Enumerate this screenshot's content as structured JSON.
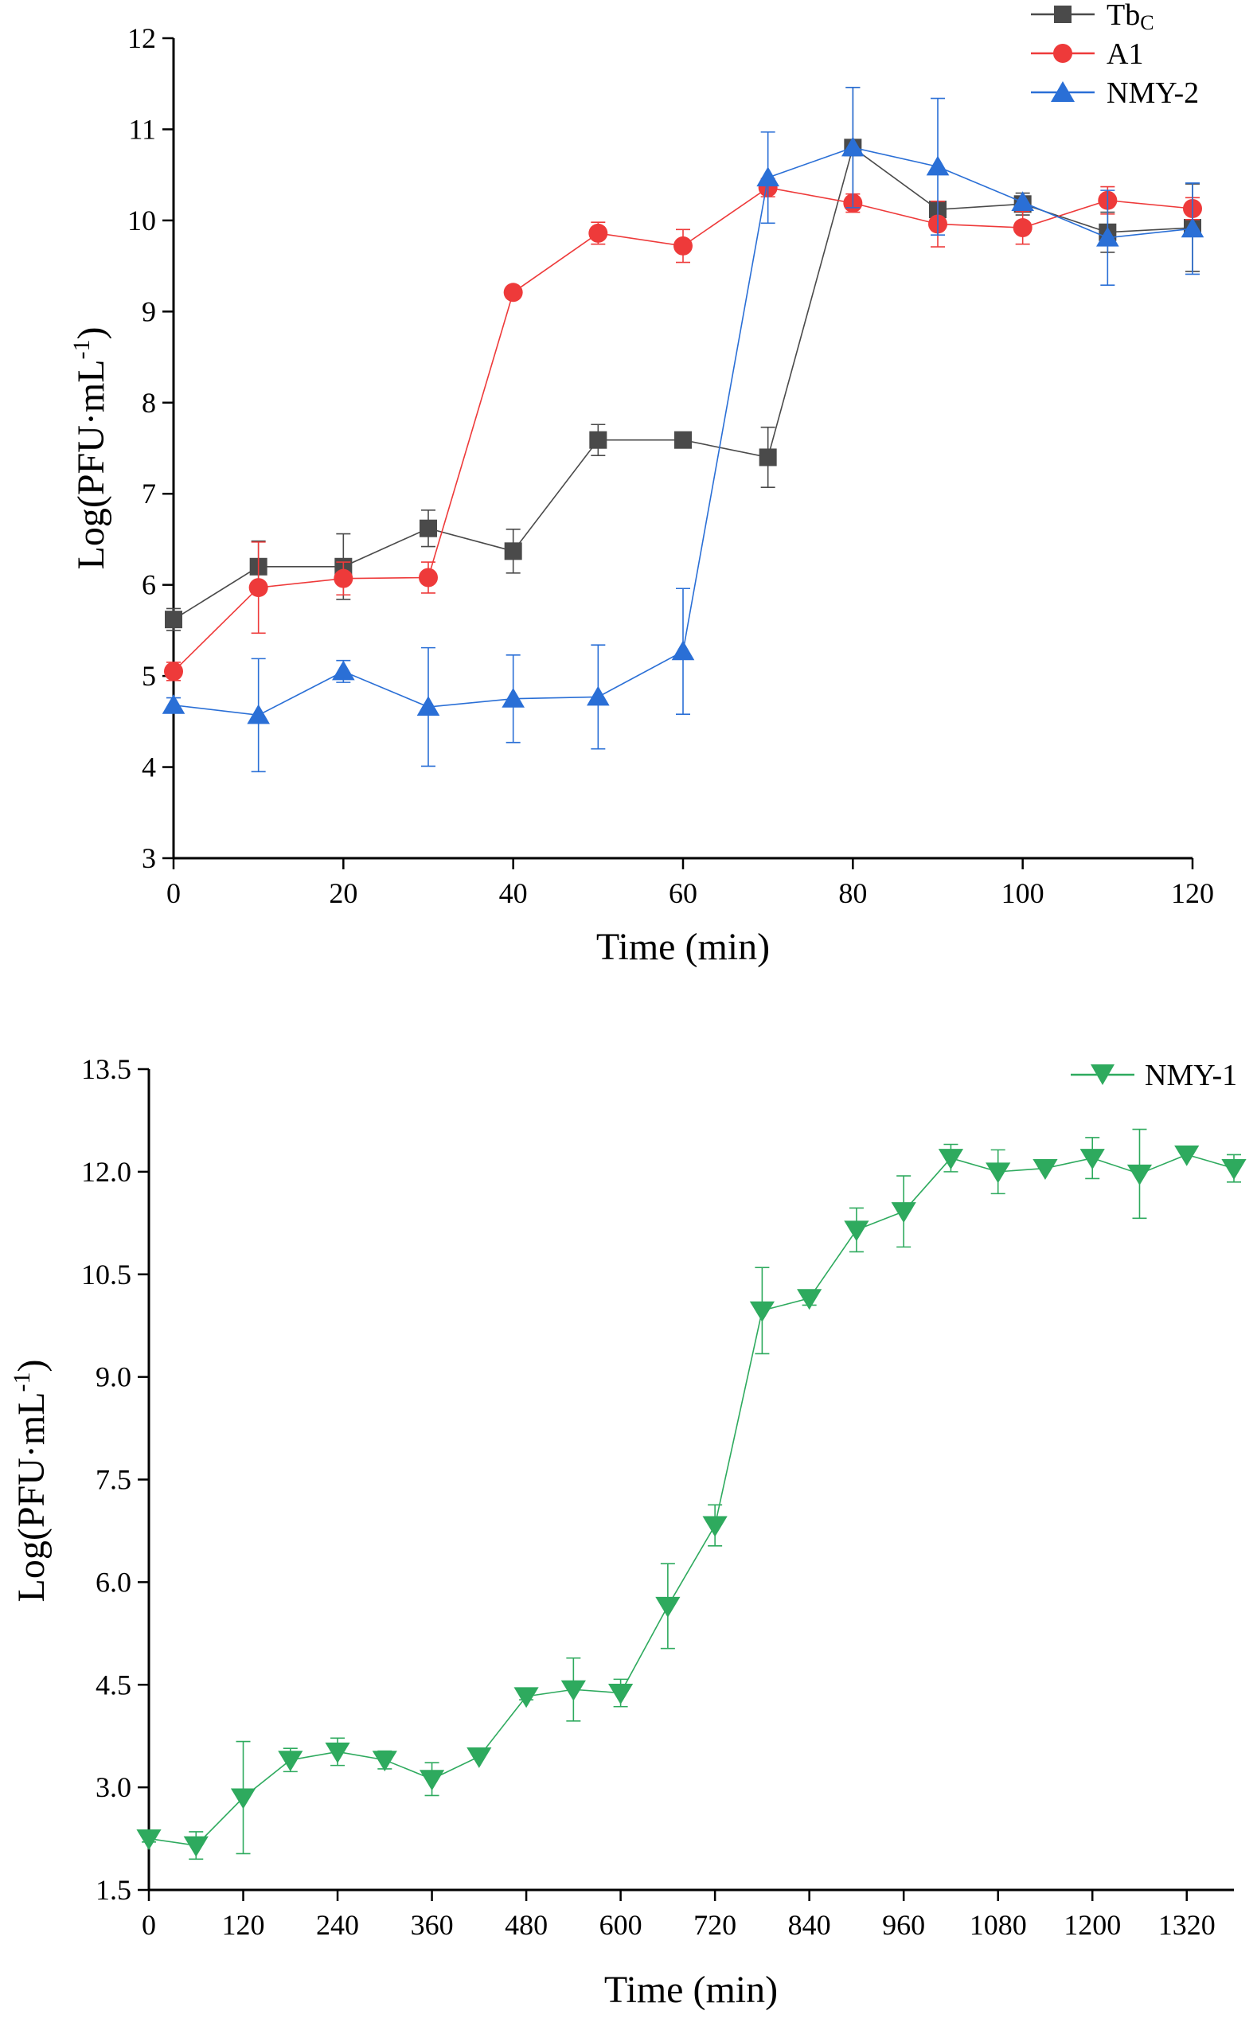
{
  "colors": {
    "Tbc": "#4a4a4a",
    "A1": "#ee3a3a",
    "NMY-2": "#2a6fd6",
    "NMY-1": "#2eaa5e",
    "axis": "#000000"
  },
  "chart_data": [
    {
      "id": "top",
      "type": "line",
      "xlabel": "Time (min)",
      "ylabel": "Log(PFU·mL",
      "ylabel_sup": "-1",
      "ylabel_close": ")",
      "xlim": [
        0,
        120
      ],
      "ylim": [
        3,
        12
      ],
      "xticks": [
        0,
        20,
        40,
        60,
        80,
        100,
        120
      ],
      "xtick_labels": [
        "0",
        "20",
        "40",
        "60",
        "80",
        "100",
        "120"
      ],
      "yticks": [
        3,
        4,
        5,
        6,
        7,
        8,
        9,
        10,
        11,
        12
      ],
      "ytick_labels": [
        "3",
        "4",
        "5",
        "6",
        "7",
        "8",
        "9",
        "10",
        "11",
        "12"
      ],
      "legend_position": "top-right",
      "series": [
        {
          "name": "Tbc",
          "label_main": "Tb",
          "label_sub": "C",
          "marker": "square",
          "color_key": "Tbc",
          "x": [
            0,
            10,
            20,
            30,
            40,
            50,
            60,
            70,
            80,
            90,
            100,
            110,
            120
          ],
          "values": [
            5.62,
            6.2,
            6.2,
            6.62,
            6.37,
            7.59,
            7.59,
            7.4,
            10.8,
            10.12,
            10.18,
            9.87,
            9.92
          ],
          "errors": [
            0.12,
            0.28,
            0.36,
            0.2,
            0.24,
            0.17,
            0.0,
            0.33,
            0.66,
            0.0,
            0.12,
            0.22,
            0.48
          ]
        },
        {
          "name": "A1",
          "label_main": "A1",
          "label_sub": "",
          "marker": "circle",
          "color_key": "A1",
          "x": [
            0,
            10,
            20,
            30,
            40,
            50,
            60,
            70,
            80,
            90,
            100,
            110,
            120
          ],
          "values": [
            5.05,
            5.97,
            6.07,
            6.08,
            9.21,
            9.86,
            9.72,
            10.36,
            10.19,
            9.96,
            9.92,
            10.22,
            10.13
          ],
          "errors": [
            0.1,
            0.5,
            0.18,
            0.17,
            0.0,
            0.12,
            0.18,
            0.1,
            0.1,
            0.25,
            0.18,
            0.15,
            0.12
          ]
        },
        {
          "name": "NMY-2",
          "label_main": "NMY-2",
          "label_sub": "",
          "marker": "triangle-up",
          "color_key": "NMY-2",
          "x": [
            0,
            10,
            20,
            30,
            40,
            50,
            60,
            70,
            80,
            90,
            100,
            110,
            120
          ],
          "values": [
            4.68,
            4.57,
            5.05,
            4.66,
            4.75,
            4.77,
            5.27,
            10.47,
            10.8,
            10.59,
            10.2,
            9.81,
            9.91
          ],
          "errors": [
            0.08,
            0.62,
            0.12,
            0.65,
            0.48,
            0.57,
            0.69,
            0.5,
            0.66,
            0.75,
            0.0,
            0.52,
            0.5
          ]
        }
      ]
    },
    {
      "id": "bottom",
      "type": "line",
      "xlabel": "Time (min)",
      "ylabel": "Log(PFU·mL",
      "ylabel_sup": "-1",
      "ylabel_close": ")",
      "xlim": [
        0,
        1380
      ],
      "ylim": [
        1.5,
        13.5
      ],
      "xticks": [
        0,
        120,
        240,
        360,
        480,
        600,
        720,
        840,
        960,
        1080,
        1200,
        1320
      ],
      "xtick_labels": [
        "0",
        "120",
        "240",
        "360",
        "480",
        "600",
        "720",
        "840",
        "960",
        "1080",
        "1200",
        "1320"
      ],
      "yticks": [
        1.5,
        3.0,
        4.5,
        6.0,
        7.5,
        9.0,
        10.5,
        12.0,
        13.5
      ],
      "ytick_labels": [
        "1.5",
        "3.0",
        "4.5",
        "6.0",
        "7.5",
        "9.0",
        "10.5",
        "12.0",
        "13.5"
      ],
      "legend_position": "top-right",
      "series": [
        {
          "name": "NMY-1",
          "label_main": "NMY-1",
          "label_sub": "",
          "marker": "triangle-down",
          "color_key": "NMY-1",
          "x": [
            0,
            60,
            120,
            180,
            240,
            300,
            360,
            420,
            480,
            540,
            600,
            660,
            720,
            780,
            840,
            900,
            960,
            1020,
            1080,
            1140,
            1200,
            1260,
            1320,
            1380
          ],
          "values": [
            2.25,
            2.15,
            2.85,
            3.4,
            3.52,
            3.4,
            3.12,
            3.45,
            4.33,
            4.43,
            4.38,
            5.65,
            6.83,
            9.97,
            10.15,
            11.15,
            11.42,
            12.2,
            12.0,
            12.05,
            12.2,
            11.97,
            12.25,
            12.05
          ],
          "errors": [
            0.05,
            0.2,
            0.82,
            0.17,
            0.2,
            0.13,
            0.24,
            0.0,
            0.05,
            0.46,
            0.2,
            0.62,
            0.3,
            0.63,
            0.1,
            0.32,
            0.52,
            0.2,
            0.32,
            0.0,
            0.3,
            0.65,
            0.0,
            0.2
          ]
        }
      ]
    }
  ]
}
